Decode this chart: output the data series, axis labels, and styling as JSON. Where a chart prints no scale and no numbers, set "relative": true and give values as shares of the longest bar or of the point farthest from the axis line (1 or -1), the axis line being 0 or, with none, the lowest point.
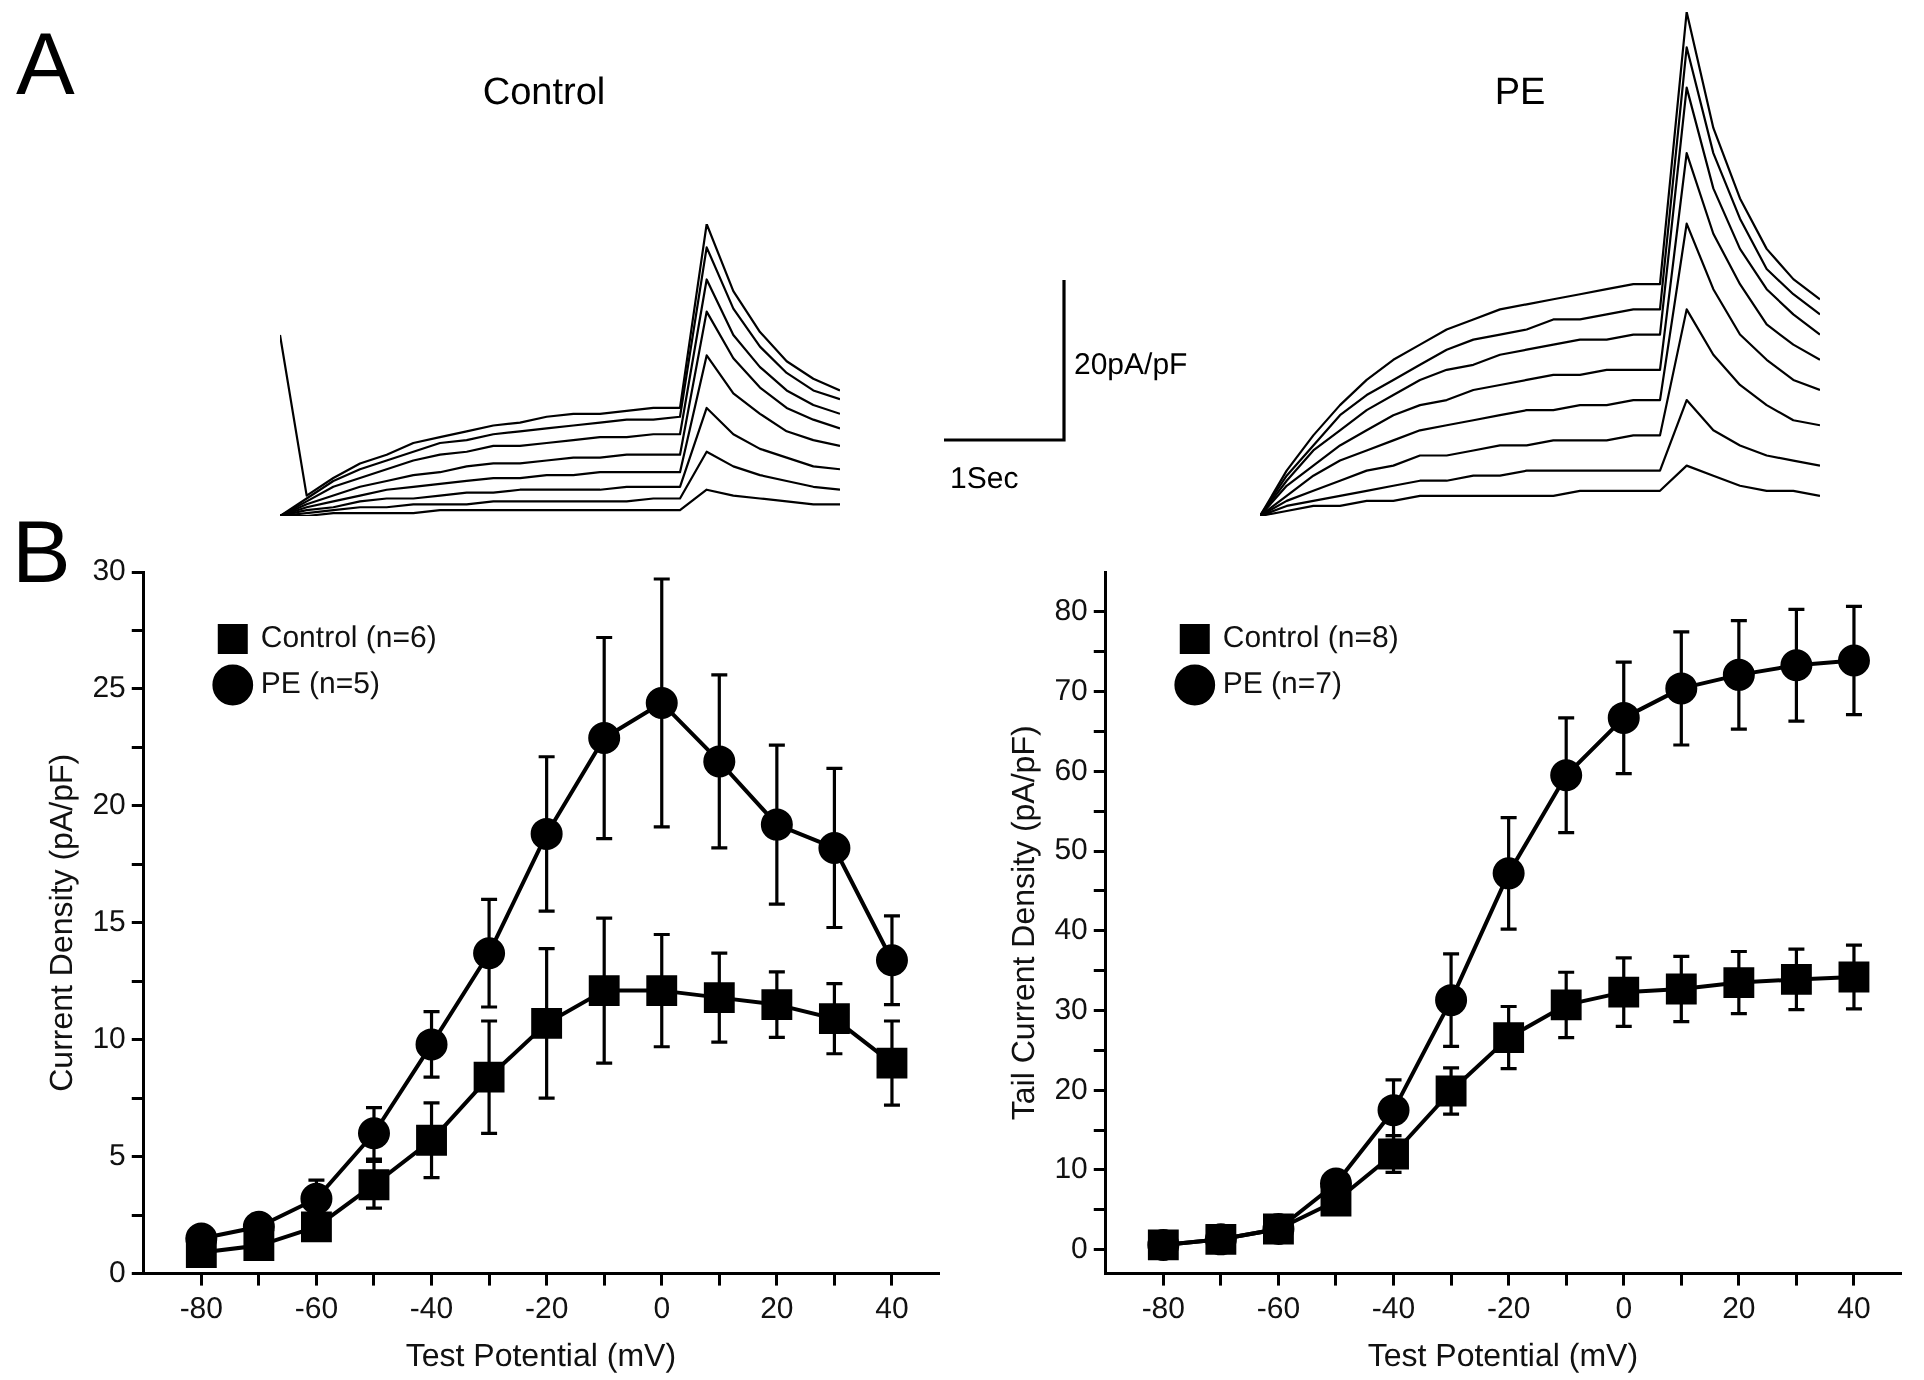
{
  "chart_data": [
    {
      "type": "line",
      "title": "Control",
      "annotations": [
        "A"
      ],
      "relative": true,
      "tick_labels": false,
      "marker": "none",
      "categories": [
        null,
        null,
        null,
        null,
        null,
        null,
        null,
        null,
        null,
        null,
        null,
        null,
        null,
        null,
        null,
        null,
        null,
        null,
        null,
        null,
        null,
        null
      ],
      "series": [
        {
          "color": "#000000",
          "values": [
            0,
            0,
            0.01,
            0.01,
            0.01,
            0.01,
            0.02,
            0.02,
            0.02,
            0.02,
            0.02,
            0.02,
            0.02,
            0.02,
            0.02,
            0.02,
            0.09,
            0.07,
            0.06,
            0.05,
            0.04,
            0.04
          ]
        },
        {
          "color": "#000000",
          "values": [
            0,
            0.01,
            0.02,
            0.03,
            0.03,
            0.04,
            0.04,
            0.04,
            0.05,
            0.05,
            0.05,
            0.05,
            0.05,
            0.05,
            0.06,
            0.06,
            0.22,
            0.17,
            0.14,
            0.12,
            0.1,
            0.09
          ]
        },
        {
          "color": "#000000",
          "values": [
            0,
            0.02,
            0.03,
            0.05,
            0.06,
            0.06,
            0.07,
            0.08,
            0.08,
            0.09,
            0.09,
            0.09,
            0.09,
            0.1,
            0.1,
            0.1,
            0.37,
            0.28,
            0.23,
            0.2,
            0.17,
            0.16
          ]
        },
        {
          "color": "#000000",
          "values": [
            0,
            0.03,
            0.05,
            0.07,
            0.09,
            0.1,
            0.11,
            0.12,
            0.13,
            0.13,
            0.14,
            0.14,
            0.15,
            0.15,
            0.15,
            0.15,
            0.55,
            0.42,
            0.35,
            0.29,
            0.26,
            0.24
          ]
        },
        {
          "color": "#000000",
          "values": [
            0,
            0.04,
            0.07,
            0.1,
            0.12,
            0.14,
            0.15,
            0.17,
            0.18,
            0.18,
            0.19,
            0.2,
            0.2,
            0.21,
            0.21,
            0.21,
            0.7,
            0.54,
            0.44,
            0.37,
            0.33,
            0.3
          ]
        },
        {
          "color": "#000000",
          "values": [
            0,
            0.05,
            0.1,
            0.13,
            0.16,
            0.19,
            0.21,
            0.22,
            0.24,
            0.24,
            0.25,
            0.26,
            0.27,
            0.27,
            0.28,
            0.28,
            0.81,
            0.62,
            0.51,
            0.43,
            0.38,
            0.35
          ]
        },
        {
          "color": "#000000",
          "values": [
            0,
            0.06,
            0.12,
            0.16,
            0.19,
            0.22,
            0.25,
            0.26,
            0.28,
            0.29,
            0.3,
            0.31,
            0.32,
            0.33,
            0.33,
            0.34,
            0.92,
            0.71,
            0.58,
            0.49,
            0.43,
            0.4
          ]
        },
        {
          "color": "#000000",
          "values": [
            0.62,
            0.07,
            0.13,
            0.18,
            0.21,
            0.25,
            0.27,
            0.29,
            0.31,
            0.32,
            0.34,
            0.35,
            0.35,
            0.36,
            0.37,
            0.37,
            1,
            0.77,
            0.63,
            0.53,
            0.47,
            0.43
          ]
        }
      ]
    },
    {
      "type": "line",
      "title": "PE",
      "annotations": [
        "20pA/pF",
        "1Sec"
      ],
      "relative": true,
      "tick_labels": false,
      "marker": "none",
      "categories": [
        null,
        null,
        null,
        null,
        null,
        null,
        null,
        null,
        null,
        null,
        null,
        null,
        null,
        null,
        null,
        null,
        null,
        null,
        null,
        null,
        null,
        null
      ],
      "series": [
        {
          "color": "#000000",
          "values": [
            0,
            0.01,
            0.02,
            0.02,
            0.03,
            0.03,
            0.04,
            0.04,
            0.04,
            0.04,
            0.04,
            0.04,
            0.05,
            0.05,
            0.05,
            0.05,
            0.1,
            0.08,
            0.06,
            0.05,
            0.05,
            0.04
          ]
        },
        {
          "color": "#000000",
          "values": [
            0,
            0.02,
            0.03,
            0.04,
            0.05,
            0.06,
            0.07,
            0.07,
            0.08,
            0.08,
            0.09,
            0.09,
            0.09,
            0.09,
            0.09,
            0.09,
            0.23,
            0.17,
            0.14,
            0.12,
            0.11,
            0.1
          ]
        },
        {
          "color": "#000000",
          "values": [
            0,
            0.03,
            0.05,
            0.07,
            0.09,
            0.1,
            0.12,
            0.12,
            0.13,
            0.14,
            0.14,
            0.15,
            0.15,
            0.15,
            0.16,
            0.16,
            0.41,
            0.32,
            0.26,
            0.22,
            0.19,
            0.18
          ]
        },
        {
          "color": "#000000",
          "values": [
            0,
            0.04,
            0.08,
            0.11,
            0.13,
            0.15,
            0.17,
            0.18,
            0.19,
            0.2,
            0.21,
            0.21,
            0.22,
            0.22,
            0.23,
            0.23,
            0.58,
            0.45,
            0.36,
            0.31,
            0.27,
            0.25
          ]
        },
        {
          "color": "#000000",
          "values": [
            0,
            0.06,
            0.1,
            0.14,
            0.17,
            0.2,
            0.22,
            0.23,
            0.25,
            0.26,
            0.27,
            0.28,
            0.28,
            0.29,
            0.29,
            0.29,
            0.72,
            0.56,
            0.46,
            0.38,
            0.34,
            0.31
          ]
        },
        {
          "color": "#000000",
          "values": [
            0,
            0.07,
            0.13,
            0.17,
            0.21,
            0.24,
            0.27,
            0.29,
            0.3,
            0.32,
            0.33,
            0.34,
            0.35,
            0.35,
            0.36,
            0.36,
            0.85,
            0.65,
            0.53,
            0.45,
            0.4,
            0.36
          ]
        },
        {
          "color": "#000000",
          "values": [
            0,
            0.08,
            0.14,
            0.2,
            0.24,
            0.27,
            0.3,
            0.33,
            0.35,
            0.36,
            0.37,
            0.39,
            0.39,
            0.4,
            0.41,
            0.41,
            0.93,
            0.72,
            0.59,
            0.49,
            0.44,
            0.4
          ]
        },
        {
          "color": "#000000",
          "values": [
            0,
            0.09,
            0.16,
            0.22,
            0.27,
            0.31,
            0.34,
            0.37,
            0.39,
            0.41,
            0.42,
            0.43,
            0.44,
            0.45,
            0.46,
            0.46,
            1,
            0.77,
            0.63,
            0.53,
            0.47,
            0.43
          ]
        }
      ]
    },
    {
      "type": "line",
      "annotations": [
        "B"
      ],
      "xlabel": "Test Potential (mV)",
      "ylabel": "Current Density (pA/pF)",
      "legend": "top left",
      "x": [
        -80,
        -70,
        -60,
        -50,
        -40,
        -30,
        -20,
        -10,
        0,
        10,
        20,
        30,
        40
      ],
      "xlim": [
        -90,
        48
      ],
      "xticks": [
        -80,
        {
          "value": -70,
          "label": null
        },
        -60,
        {
          "value": -50,
          "label": null
        },
        -40,
        {
          "value": -30,
          "label": null
        },
        -20,
        {
          "value": -10,
          "label": null
        },
        0,
        {
          "value": 10,
          "label": null
        },
        20,
        {
          "value": 30,
          "label": null
        },
        40
      ],
      "ylim": [
        0,
        30
      ],
      "yticks": [
        0,
        {
          "value": 2.5,
          "label": null
        },
        5,
        {
          "value": 7.5,
          "label": null
        },
        10,
        {
          "value": 12.5,
          "label": null
        },
        15,
        {
          "value": 17.5,
          "label": null
        },
        20,
        {
          "value": 22.5,
          "label": null
        },
        25,
        {
          "value": 27.5,
          "label": null
        },
        30
      ],
      "series": [
        {
          "name": "Control (n=6)",
          "color": "#000000",
          "marker": "square",
          "values": [
            0.9,
            1.2,
            2.0,
            3.8,
            5.7,
            8.4,
            10.7,
            12.1,
            12.1,
            11.8,
            11.5,
            10.9,
            9.0
          ],
          "errors": [
            null,
            null,
            null,
            1.0,
            1.6,
            2.4,
            3.2,
            3.1,
            2.4,
            1.9,
            1.4,
            1.5,
            1.8
          ]
        },
        {
          "name": "PE (n=5)",
          "color": "#000000",
          "marker": "circle",
          "values": [
            1.5,
            2.0,
            3.2,
            6.0,
            9.8,
            13.7,
            18.8,
            22.9,
            24.4,
            21.9,
            19.2,
            18.2,
            13.4
          ],
          "errors": [
            null,
            null,
            0.8,
            1.1,
            1.4,
            2.3,
            3.3,
            4.3,
            5.3,
            3.7,
            3.4,
            3.4,
            1.9
          ]
        }
      ]
    },
    {
      "type": "line",
      "xlabel": "Test Potential (mV)",
      "ylabel": "Tail Current Density (pA/pF)",
      "legend": "top left",
      "x": [
        -80,
        -70,
        -60,
        -50,
        -40,
        -30,
        -20,
        -10,
        0,
        10,
        20,
        30,
        40
      ],
      "xlim": [
        -90,
        48
      ],
      "xticks": [
        -80,
        {
          "value": -70,
          "label": null
        },
        -60,
        {
          "value": -50,
          "label": null
        },
        -40,
        {
          "value": -30,
          "label": null
        },
        -20,
        {
          "value": -10,
          "label": null
        },
        0,
        {
          "value": 10,
          "label": null
        },
        20,
        {
          "value": 30,
          "label": null
        },
        40
      ],
      "ylim": [
        -3,
        85
      ],
      "yticks": [
        0,
        {
          "value": 5,
          "label": null
        },
        10,
        {
          "value": 15,
          "label": null
        },
        20,
        {
          "value": 25,
          "label": null
        },
        30,
        {
          "value": 35,
          "label": null
        },
        40,
        {
          "value": 45,
          "label": null
        },
        50,
        {
          "value": 55,
          "label": null
        },
        60,
        {
          "value": 65,
          "label": null
        },
        70,
        {
          "value": 75,
          "label": null
        },
        80
      ],
      "series": [
        {
          "name": "Control (n=8)",
          "color": "#000000",
          "marker": "square",
          "values": [
            0.6,
            1.3,
            2.6,
            6.1,
            12.0,
            19.9,
            26.6,
            30.7,
            32.3,
            32.7,
            33.5,
            33.9,
            34.2
          ],
          "errors": [
            null,
            null,
            null,
            null,
            2.3,
            2.9,
            3.9,
            4.1,
            4.3,
            4.1,
            3.9,
            3.8,
            4.0
          ]
        },
        {
          "name": "PE (n=7)",
          "color": "#000000",
          "marker": "circle",
          "values": [
            0.6,
            1.3,
            2.6,
            8.3,
            17.5,
            31.3,
            47.2,
            59.5,
            66.7,
            70.4,
            72.1,
            73.3,
            73.9
          ],
          "errors": [
            null,
            null,
            null,
            null,
            3.8,
            5.8,
            7.0,
            7.2,
            7.0,
            7.1,
            6.8,
            7.0,
            6.8
          ]
        }
      ]
    }
  ]
}
